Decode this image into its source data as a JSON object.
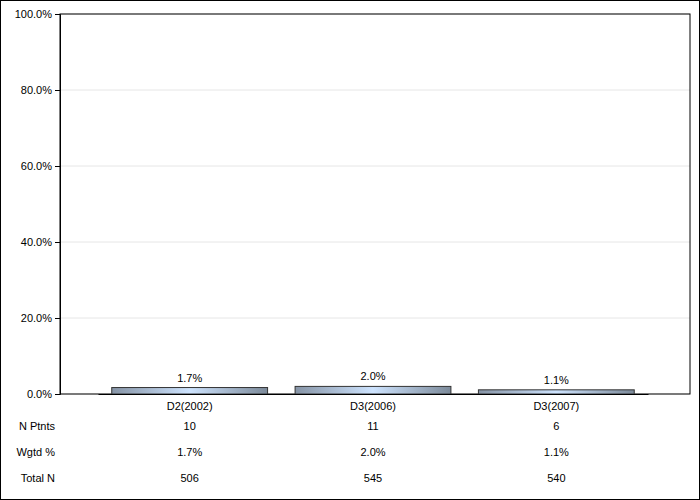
{
  "chart_data": {
    "type": "bar",
    "categories": [
      "D2(2002)",
      "D3(2006)",
      "D3(2007)"
    ],
    "values": [
      1.7,
      2.0,
      1.1
    ],
    "value_labels": [
      "1.7%",
      "2.0%",
      "1.1%"
    ],
    "data_labels": true,
    "color": "#9aabbf",
    "ylim": [
      0,
      100
    ],
    "yticks": [
      {
        "value": 0,
        "label": "0.0%"
      },
      {
        "value": 20,
        "label": "20.0%"
      },
      {
        "value": 40,
        "label": "40.0%"
      },
      {
        "value": 60,
        "label": "60.0%"
      },
      {
        "value": 80,
        "label": "80.0%"
      },
      {
        "value": 100,
        "label": "100.0%"
      }
    ],
    "grid": true
  },
  "table": {
    "rows": [
      {
        "label": "N Ptnts",
        "values": [
          10,
          11,
          6
        ]
      },
      {
        "label": "Wgtd %",
        "values": [
          "1.7%",
          "2.0%",
          "1.1%"
        ]
      },
      {
        "label": "Total N",
        "values": [
          506,
          545,
          540
        ]
      }
    ]
  }
}
